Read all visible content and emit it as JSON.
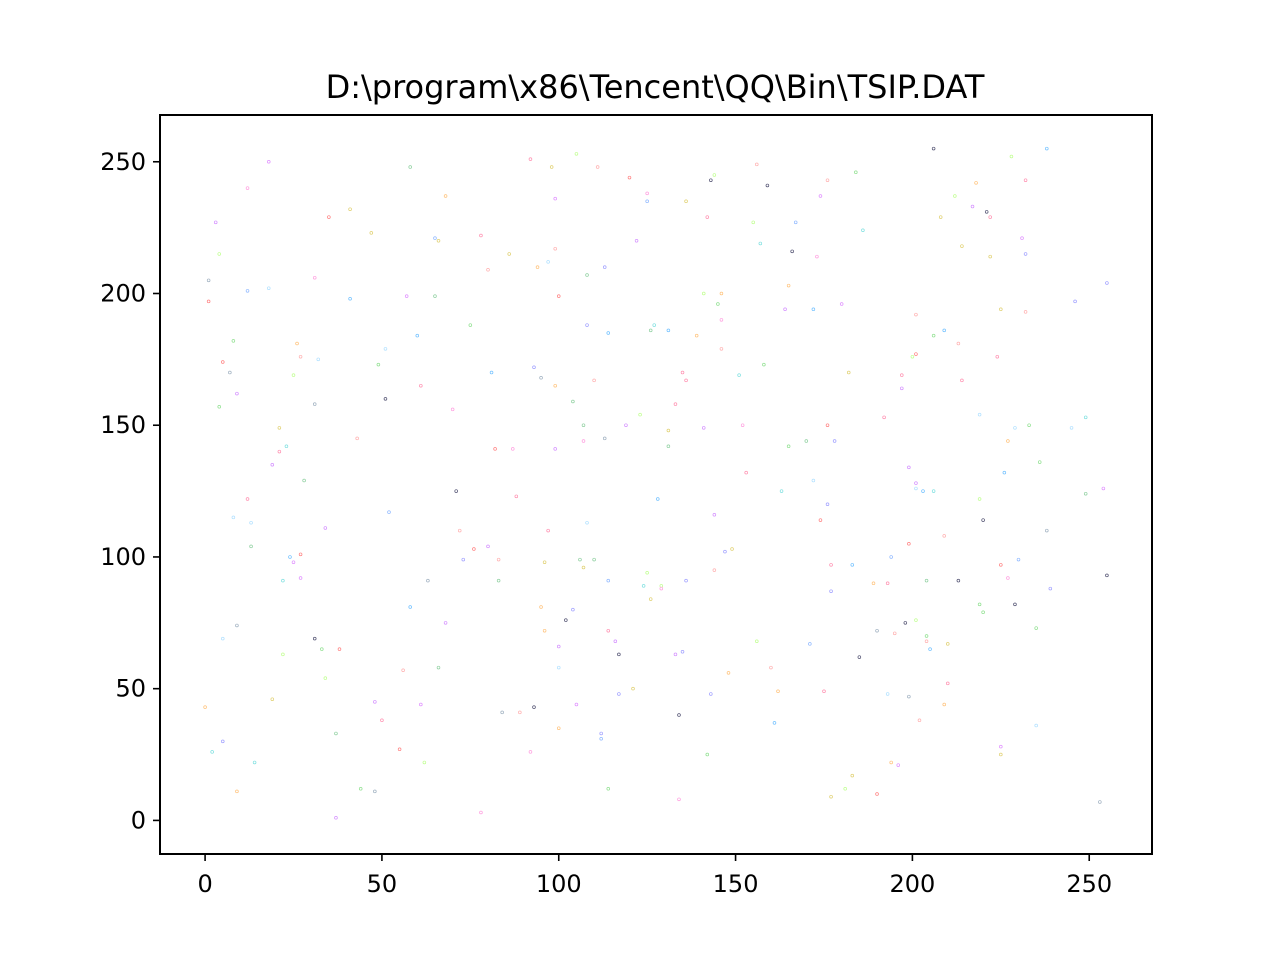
{
  "chart_data": {
    "type": "scatter",
    "title": "D:\\program\\x86\\Tencent\\QQ\\Bin\\TSIP.DAT",
    "xlabel": "",
    "ylabel": "",
    "xlim": [
      -12.75,
      267.75
    ],
    "ylim": [
      -12.75,
      267.75
    ],
    "xticks": [
      0,
      50,
      100,
      150,
      200,
      250
    ],
    "yticks": [
      0,
      50,
      100,
      150,
      200,
      250
    ],
    "grid": false,
    "legend": "none",
    "marker": "tiny hollow dots, varied pastel colors",
    "points": [
      [
        0,
        43
      ],
      [
        1,
        205
      ],
      [
        1,
        197
      ],
      [
        2,
        26
      ],
      [
        3,
        227
      ],
      [
        4,
        215
      ],
      [
        4,
        157
      ],
      [
        5,
        174
      ],
      [
        5,
        30
      ],
      [
        5,
        69
      ],
      [
        7,
        170
      ],
      [
        8,
        182
      ],
      [
        8,
        115
      ],
      [
        9,
        162
      ],
      [
        9,
        74
      ],
      [
        9,
        11
      ],
      [
        12,
        240
      ],
      [
        12,
        201
      ],
      [
        12,
        122
      ],
      [
        13,
        113
      ],
      [
        13,
        104
      ],
      [
        14,
        22
      ],
      [
        18,
        250
      ],
      [
        18,
        202
      ],
      [
        19,
        135
      ],
      [
        19,
        46
      ],
      [
        21,
        149
      ],
      [
        21,
        140
      ],
      [
        22,
        91
      ],
      [
        22,
        63
      ],
      [
        23,
        142
      ],
      [
        24,
        100
      ],
      [
        25,
        169
      ],
      [
        25,
        98
      ],
      [
        26,
        181
      ],
      [
        27,
        176
      ],
      [
        27,
        101
      ],
      [
        27,
        92
      ],
      [
        28,
        129
      ],
      [
        31,
        206
      ],
      [
        31,
        158
      ],
      [
        31,
        69
      ],
      [
        32,
        175
      ],
      [
        33,
        65
      ],
      [
        34,
        54
      ],
      [
        34,
        111
      ],
      [
        35,
        229
      ],
      [
        37,
        33
      ],
      [
        37,
        1
      ],
      [
        38,
        65
      ],
      [
        41,
        198
      ],
      [
        41,
        232
      ],
      [
        43,
        145
      ],
      [
        44,
        12
      ],
      [
        47,
        223
      ],
      [
        48,
        45
      ],
      [
        48,
        11
      ],
      [
        49,
        173
      ],
      [
        50,
        38
      ],
      [
        51,
        179
      ],
      [
        51,
        160
      ],
      [
        52,
        117
      ],
      [
        55,
        27
      ],
      [
        56,
        57
      ],
      [
        57,
        199
      ],
      [
        58,
        248
      ],
      [
        58,
        81
      ],
      [
        60,
        184
      ],
      [
        61,
        165
      ],
      [
        61,
        44
      ],
      [
        62,
        22
      ],
      [
        63,
        91
      ],
      [
        65,
        221
      ],
      [
        65,
        199
      ],
      [
        66,
        220
      ],
      [
        66,
        58
      ],
      [
        68,
        237
      ],
      [
        68,
        75
      ],
      [
        70,
        156
      ],
      [
        71,
        125
      ],
      [
        72,
        110
      ],
      [
        73,
        99
      ],
      [
        75,
        188
      ],
      [
        76,
        103
      ],
      [
        78,
        222
      ],
      [
        78,
        3
      ],
      [
        80,
        104
      ],
      [
        80,
        209
      ],
      [
        81,
        170
      ],
      [
        82,
        141
      ],
      [
        83,
        99
      ],
      [
        83,
        91
      ],
      [
        84,
        41
      ],
      [
        86,
        215
      ],
      [
        87,
        141
      ],
      [
        88,
        123
      ],
      [
        89,
        41
      ],
      [
        92,
        251
      ],
      [
        92,
        26
      ],
      [
        93,
        43
      ],
      [
        93,
        172
      ],
      [
        94,
        210
      ],
      [
        95,
        168
      ],
      [
        95,
        81
      ],
      [
        96,
        98
      ],
      [
        96,
        72
      ],
      [
        97,
        212
      ],
      [
        97,
        110
      ],
      [
        98,
        248
      ],
      [
        99,
        236
      ],
      [
        99,
        217
      ],
      [
        99,
        165
      ],
      [
        99,
        141
      ],
      [
        100,
        199
      ],
      [
        100,
        66
      ],
      [
        100,
        58
      ],
      [
        100,
        35
      ],
      [
        102,
        76
      ],
      [
        104,
        159
      ],
      [
        104,
        80
      ],
      [
        105,
        253
      ],
      [
        105,
        44
      ],
      [
        106,
        99
      ],
      [
        107,
        96
      ],
      [
        107,
        150
      ],
      [
        107,
        144
      ],
      [
        108,
        207
      ],
      [
        108,
        188
      ],
      [
        108,
        113
      ],
      [
        110,
        167
      ],
      [
        110,
        99
      ],
      [
        111,
        248
      ],
      [
        112,
        33
      ],
      [
        112,
        31
      ],
      [
        113,
        210
      ],
      [
        113,
        145
      ],
      [
        114,
        185
      ],
      [
        114,
        91
      ],
      [
        114,
        72
      ],
      [
        114,
        12
      ],
      [
        116,
        68
      ],
      [
        117,
        63
      ],
      [
        117,
        48
      ],
      [
        119,
        150
      ],
      [
        120,
        244
      ],
      [
        121,
        50
      ],
      [
        122,
        220
      ],
      [
        123,
        154
      ],
      [
        124,
        89
      ],
      [
        125,
        238
      ],
      [
        125,
        235
      ],
      [
        125,
        94
      ],
      [
        126,
        84
      ],
      [
        126,
        186
      ],
      [
        127,
        188
      ],
      [
        128,
        122
      ],
      [
        129,
        89
      ],
      [
        129,
        88
      ],
      [
        131,
        186
      ],
      [
        131,
        148
      ],
      [
        131,
        142
      ],
      [
        133,
        158
      ],
      [
        133,
        63
      ],
      [
        134,
        40
      ],
      [
        134,
        8
      ],
      [
        135,
        170
      ],
      [
        135,
        64
      ],
      [
        136,
        167
      ],
      [
        136,
        91
      ],
      [
        136,
        235
      ],
      [
        139,
        184
      ],
      [
        141,
        200
      ],
      [
        141,
        149
      ],
      [
        142,
        229
      ],
      [
        142,
        25
      ],
      [
        143,
        243
      ],
      [
        143,
        48
      ],
      [
        144,
        245
      ],
      [
        144,
        116
      ],
      [
        144,
        95
      ],
      [
        145,
        196
      ],
      [
        146,
        200
      ],
      [
        146,
        190
      ],
      [
        146,
        179
      ],
      [
        147,
        102
      ],
      [
        148,
        56
      ],
      [
        149,
        103
      ],
      [
        151,
        169
      ],
      [
        152,
        150
      ],
      [
        153,
        132
      ],
      [
        155,
        227
      ],
      [
        156,
        249
      ],
      [
        156,
        68
      ],
      [
        157,
        219
      ],
      [
        158,
        173
      ],
      [
        159,
        241
      ],
      [
        160,
        58
      ],
      [
        161,
        37
      ],
      [
        162,
        49
      ],
      [
        163,
        125
      ],
      [
        164,
        194
      ],
      [
        165,
        203
      ],
      [
        165,
        142
      ],
      [
        166,
        216
      ],
      [
        167,
        227
      ],
      [
        170,
        144
      ],
      [
        171,
        67
      ],
      [
        172,
        194
      ],
      [
        172,
        129
      ],
      [
        173,
        214
      ],
      [
        174,
        114
      ],
      [
        174,
        237
      ],
      [
        175,
        49
      ],
      [
        176,
        243
      ],
      [
        176,
        150
      ],
      [
        176,
        120
      ],
      [
        177,
        97
      ],
      [
        177,
        87
      ],
      [
        177,
        9
      ],
      [
        178,
        144
      ],
      [
        180,
        196
      ],
      [
        181,
        12
      ],
      [
        182,
        170
      ],
      [
        183,
        97
      ],
      [
        183,
        17
      ],
      [
        184,
        246
      ],
      [
        185,
        62
      ],
      [
        186,
        224
      ],
      [
        189,
        90
      ],
      [
        190,
        72
      ],
      [
        190,
        10
      ],
      [
        192,
        153
      ],
      [
        193,
        48
      ],
      [
        193,
        90
      ],
      [
        194,
        100
      ],
      [
        194,
        22
      ],
      [
        195,
        71
      ],
      [
        196,
        21
      ],
      [
        197,
        169
      ],
      [
        197,
        164
      ],
      [
        198,
        75
      ],
      [
        199,
        47
      ],
      [
        199,
        105
      ],
      [
        199,
        134
      ],
      [
        200,
        176
      ],
      [
        201,
        192
      ],
      [
        201,
        177
      ],
      [
        201,
        128
      ],
      [
        201,
        126
      ],
      [
        201,
        76
      ],
      [
        202,
        38
      ],
      [
        203,
        125
      ],
      [
        204,
        91
      ],
      [
        204,
        70
      ],
      [
        204,
        68
      ],
      [
        205,
        65
      ],
      [
        206,
        255
      ],
      [
        206,
        184
      ],
      [
        206,
        125
      ],
      [
        208,
        229
      ],
      [
        209,
        186
      ],
      [
        209,
        108
      ],
      [
        209,
        44
      ],
      [
        210,
        67
      ],
      [
        210,
        52
      ],
      [
        212,
        237
      ],
      [
        213,
        181
      ],
      [
        213,
        91
      ],
      [
        214,
        218
      ],
      [
        214,
        167
      ],
      [
        217,
        233
      ],
      [
        218,
        242
      ],
      [
        219,
        154
      ],
      [
        219,
        122
      ],
      [
        219,
        82
      ],
      [
        220,
        114
      ],
      [
        220,
        79
      ],
      [
        221,
        231
      ],
      [
        222,
        214
      ],
      [
        222,
        229
      ],
      [
        224,
        176
      ],
      [
        225,
        194
      ],
      [
        225,
        97
      ],
      [
        225,
        28
      ],
      [
        225,
        25
      ],
      [
        226,
        132
      ],
      [
        227,
        144
      ],
      [
        227,
        92
      ],
      [
        228,
        252
      ],
      [
        229,
        149
      ],
      [
        229,
        82
      ],
      [
        230,
        99
      ],
      [
        231,
        221
      ],
      [
        232,
        243
      ],
      [
        232,
        215
      ],
      [
        232,
        193
      ],
      [
        233,
        150
      ],
      [
        235,
        73
      ],
      [
        235,
        36
      ],
      [
        236,
        136
      ],
      [
        238,
        255
      ],
      [
        238,
        110
      ],
      [
        239,
        88
      ],
      [
        245,
        149
      ],
      [
        246,
        197
      ],
      [
        249,
        153
      ],
      [
        249,
        124
      ],
      [
        253,
        7
      ],
      [
        254,
        126
      ],
      [
        255,
        93
      ],
      [
        255,
        204
      ]
    ]
  }
}
